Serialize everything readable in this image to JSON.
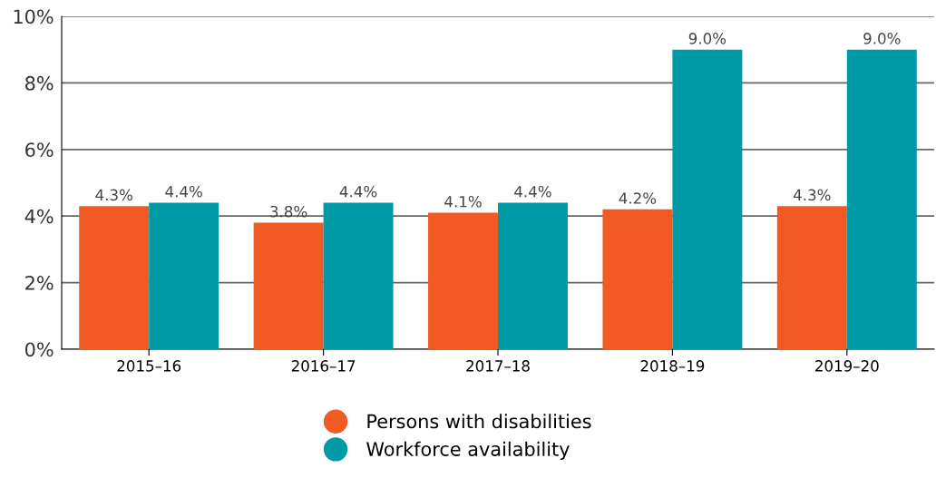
{
  "chart_data": {
    "type": "bar",
    "categories": [
      "2015–16",
      "2016–17",
      "2017–18",
      "2018–19",
      "2019–20"
    ],
    "series": [
      {
        "name": "Persons with disabilities",
        "color": "#f15a22",
        "values": [
          4.3,
          3.8,
          4.1,
          4.2,
          4.3
        ],
        "value_labels": [
          "4.3%",
          "3.8%",
          "4.1%",
          "4.2%",
          "4.3%"
        ]
      },
      {
        "name": "Workforce availability",
        "color": "#009aa6",
        "values": [
          4.4,
          4.4,
          4.4,
          9.0,
          9.0
        ],
        "value_labels": [
          "4.4%",
          "4.4%",
          "4.4%",
          "9.0%",
          "9.0%"
        ]
      }
    ],
    "ylim": [
      0,
      10
    ],
    "yticks": [
      {
        "value": 0,
        "label": "0%"
      },
      {
        "value": 2,
        "label": "2%"
      },
      {
        "value": 4,
        "label": "4%"
      },
      {
        "value": 6,
        "label": "6%"
      },
      {
        "value": 8,
        "label": "8%"
      },
      {
        "value": 10,
        "label": "10%"
      }
    ],
    "grid": "y",
    "legend": "bottom"
  }
}
